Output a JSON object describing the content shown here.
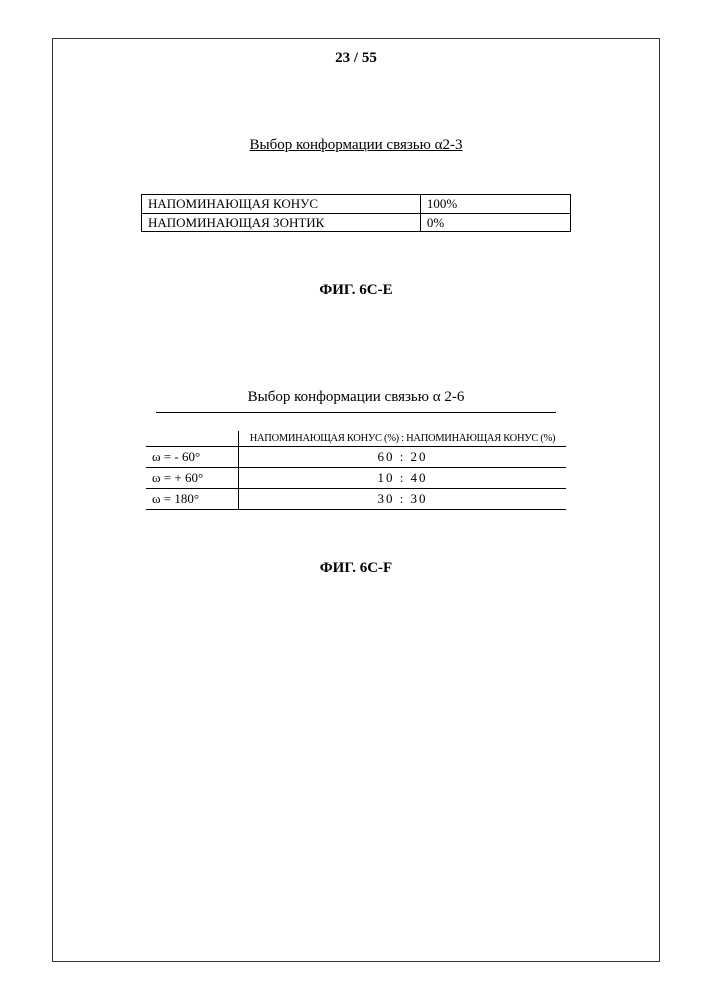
{
  "page_number": "23 / 55",
  "section1": {
    "title": "Выбор конформации связью α2-3",
    "rows": [
      {
        "label": "НАПОМИНАЮЩАЯ КОНУС",
        "value": "100%"
      },
      {
        "label": "НАПОМИНАЮЩАЯ ЗОНТИК",
        "value": "0%"
      }
    ],
    "caption": "ФИГ. 6C-E"
  },
  "section2": {
    "title": "Выбор конформации связью α 2-6",
    "header": "НАПОМИНАЮЩАЯ КОНУС (%) : НАПОМИНАЮЩАЯ КОНУС (%)",
    "rows": [
      {
        "label": "ω = - 60°",
        "value": "60 : 20"
      },
      {
        "label": "ω = + 60°",
        "value": "10 : 40"
      },
      {
        "label": "ω = 180°",
        "value": "30 : 30"
      }
    ],
    "caption": "ФИГ. 6C-F"
  }
}
